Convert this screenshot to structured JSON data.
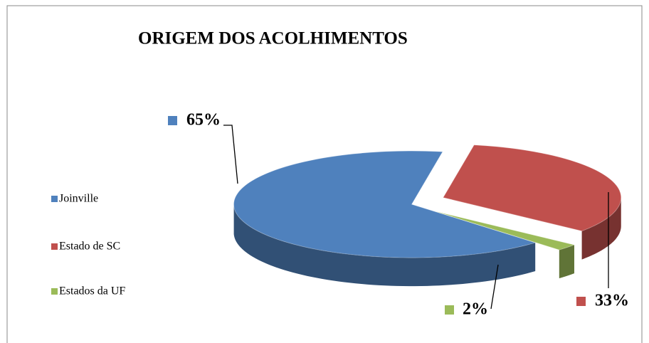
{
  "chart_data": {
    "type": "pie",
    "title": "ORIGEM DOS ACOLHIMENTOS",
    "categories": [
      "Joinville",
      "Estado de SC",
      "Estados da UF"
    ],
    "values": [
      65,
      33,
      2
    ],
    "value_labels": [
      "65%",
      "33%",
      "2%"
    ],
    "colors": [
      "#4f81bd",
      "#c0504d",
      "#9bbb59"
    ],
    "legend": "left",
    "three_d": true
  }
}
